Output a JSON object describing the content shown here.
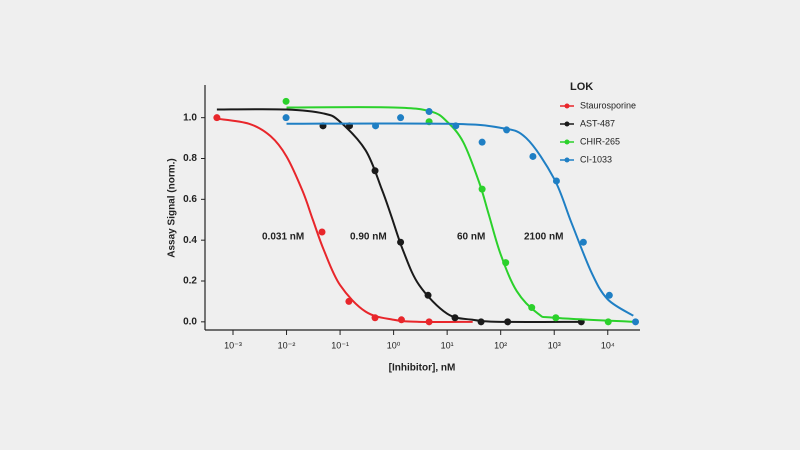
{
  "chart_data": {
    "type": "scatter",
    "xlabel": "[Inhibitor], nM",
    "ylabel": "Assay Signal (norm.)",
    "legend_title": "LOK",
    "legend": "upper right",
    "xscale": "log",
    "xlim": [
      0.0003,
      40000
    ],
    "ylim": [
      -0.04,
      1.16
    ],
    "xticks": [
      {
        "value": 0.001,
        "label": "10⁻³"
      },
      {
        "value": 0.01,
        "label": "10⁻²"
      },
      {
        "value": 0.1,
        "label": "10⁻¹"
      },
      {
        "value": 1,
        "label": "10⁰"
      },
      {
        "value": 10,
        "label": "10¹"
      },
      {
        "value": 100,
        "label": "10²"
      },
      {
        "value": 1000,
        "label": "10³"
      },
      {
        "value": 10000,
        "label": "10⁴"
      }
    ],
    "yticks": [
      {
        "value": 0,
        "label": "0.0"
      },
      0.2,
      0.4,
      0.6,
      0.8,
      {
        "value": 1,
        "label": "1.0"
      }
    ],
    "annotations": [
      "0.031 nM",
      "0.90 nM",
      "60 nM",
      "2100 nM"
    ],
    "series": [
      {
        "name": "Staurosporine",
        "color": "#e8262b",
        "x": [
          0.0005,
          0.046,
          0.146,
          0.45,
          1.4,
          4.6
        ],
        "values": [
          1.0,
          0.44,
          0.1,
          0.02,
          0.01,
          0.0
        ],
        "fit_x": [
          0.0005,
          0.002,
          0.005,
          0.01,
          0.02,
          0.031,
          0.05,
          0.1,
          0.3,
          1,
          3,
          30
        ],
        "fit_values": [
          0.995,
          0.97,
          0.91,
          0.81,
          0.64,
          0.5,
          0.35,
          0.18,
          0.05,
          0.01,
          0.0,
          0.0
        ]
      },
      {
        "name": "AST-487",
        "color": "#1a1a1a",
        "x": [
          0.048,
          0.15,
          0.45,
          1.35,
          4.4,
          14,
          43,
          135,
          3200
        ],
        "values": [
          0.96,
          0.96,
          0.74,
          0.39,
          0.13,
          0.02,
          0.0,
          0.0,
          0.0
        ],
        "fit_x": [
          0.0005,
          0.01,
          0.05,
          0.1,
          0.3,
          0.6,
          0.9,
          1.5,
          3,
          10,
          30,
          100,
          3000
        ],
        "fit_values": [
          1.04,
          1.04,
          1.02,
          0.98,
          0.84,
          0.65,
          0.52,
          0.35,
          0.18,
          0.04,
          0.01,
          0.0,
          0.0
        ]
      },
      {
        "name": "CHIR-265",
        "color": "#2bd12b",
        "x": [
          0.0098,
          4.6,
          45,
          124,
          380,
          1070,
          10200
        ],
        "values": [
          1.08,
          0.98,
          0.65,
          0.29,
          0.07,
          0.02,
          0.0
        ],
        "fit_x": [
          0.01,
          1,
          5,
          10,
          20,
          40,
          60,
          100,
          200,
          500,
          1000,
          30000
        ],
        "fit_values": [
          1.05,
          1.05,
          1.03,
          0.98,
          0.88,
          0.68,
          0.525,
          0.33,
          0.15,
          0.04,
          0.02,
          0.0
        ]
      },
      {
        "name": "CI-1033",
        "color": "#1f7fc4",
        "x": [
          0.0098,
          0.46,
          1.35,
          4.6,
          14.5,
          45,
          129,
          400,
          1100,
          3500,
          10700,
          33000
        ],
        "values": [
          1.0,
          0.96,
          1.0,
          1.03,
          0.96,
          0.88,
          0.94,
          0.81,
          0.69,
          0.39,
          0.13,
          0.0
        ],
        "fit_x": [
          0.01,
          10,
          100,
          300,
          1000,
          2100,
          5000,
          10000,
          30000
        ],
        "fit_values": [
          0.97,
          0.97,
          0.95,
          0.9,
          0.7,
          0.485,
          0.24,
          0.11,
          0.03
        ]
      }
    ]
  }
}
